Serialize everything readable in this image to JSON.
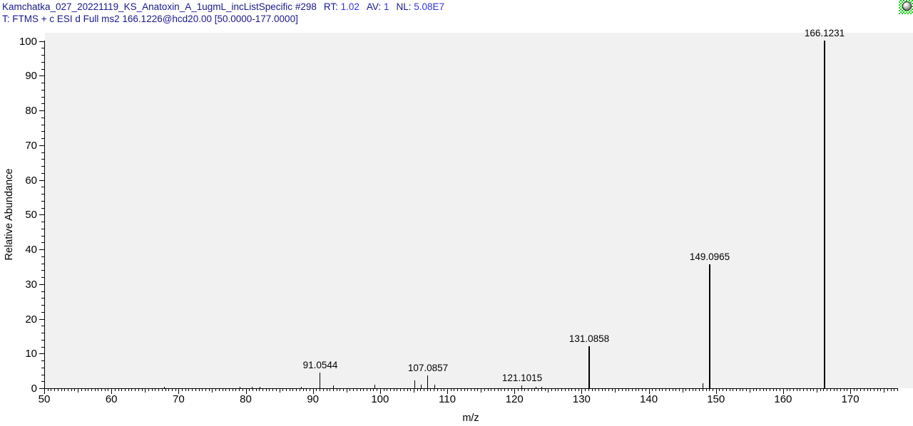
{
  "header": {
    "scan_line": {
      "file": "Kamchatka_027_20221119_KS_Anatoxin_A_1ugmL_incListSpecific",
      "scan_number": "#298",
      "rt_label": "RT:",
      "rt_value": "1.02",
      "av_label": "AV:",
      "av_value": "1",
      "nl_label": "NL:",
      "nl_value": "5.08E7"
    },
    "filter_line": "T: FTMS + c ESI d Full ms2 166.1226@hcd20.00 [50.0000-177.0000]"
  },
  "icons": {
    "pin": "pinned-cell-indicator"
  },
  "colors": {
    "header_text": "#18188C",
    "header_values": "#3232E6",
    "plot_background": "#F1F1F1",
    "axis_and_peaks": "#000000",
    "page_background": "#FFFFFF"
  },
  "chart_data": {
    "type": "bar",
    "subtype": "centroid-mass-spectrum",
    "title": "",
    "xlabel": "m/z",
    "ylabel": "Relative Abundance",
    "xlim": [
      50,
      177
    ],
    "ylim": [
      0,
      100
    ],
    "x_major_tick_interval": 10,
    "x_mid_tick_interval": 5,
    "x_minor_tick_interval": 0.5,
    "y_major_tick_interval": 10,
    "y_minor_tick_interval": 2,
    "x_tick_labels": [
      "50",
      "60",
      "70",
      "80",
      "90",
      "100",
      "110",
      "120",
      "130",
      "140",
      "150",
      "160",
      "170"
    ],
    "y_tick_labels": [
      "0",
      "10",
      "20",
      "30",
      "40",
      "50",
      "60",
      "70",
      "80",
      "90",
      "100"
    ],
    "grid": false,
    "legend": false,
    "peaks": [
      {
        "mz": 67.9,
        "intensity": 0.4,
        "label": null
      },
      {
        "mz": 79.2,
        "intensity": 0.5,
        "label": null
      },
      {
        "mz": 81.0,
        "intensity": 0.5,
        "label": null
      },
      {
        "mz": 82.1,
        "intensity": 0.4,
        "label": null
      },
      {
        "mz": 88.3,
        "intensity": 0.5,
        "label": null
      },
      {
        "mz": 91.0544,
        "intensity": 4.5,
        "label": "91.0544"
      },
      {
        "mz": 93.1,
        "intensity": 0.8,
        "label": null
      },
      {
        "mz": 99.2,
        "intensity": 1.0,
        "label": null
      },
      {
        "mz": 105.2,
        "intensity": 2.2,
        "label": null
      },
      {
        "mz": 106.1,
        "intensity": 1.0,
        "label": null
      },
      {
        "mz": 107.0857,
        "intensity": 3.7,
        "label": "107.0857"
      },
      {
        "mz": 108.1,
        "intensity": 1.0,
        "label": null
      },
      {
        "mz": 121.1015,
        "intensity": 0.9,
        "label": "121.1015"
      },
      {
        "mz": 123.2,
        "intensity": 0.5,
        "label": null
      },
      {
        "mz": 124.1,
        "intensity": 0.5,
        "label": null
      },
      {
        "mz": 131.0858,
        "intensity": 12.0,
        "label": "131.0858"
      },
      {
        "mz": 148.1,
        "intensity": 1.4,
        "label": null
      },
      {
        "mz": 149.0965,
        "intensity": 35.7,
        "label": "149.0965"
      },
      {
        "mz": 166.1231,
        "intensity": 100,
        "label": "166.1231"
      }
    ]
  }
}
